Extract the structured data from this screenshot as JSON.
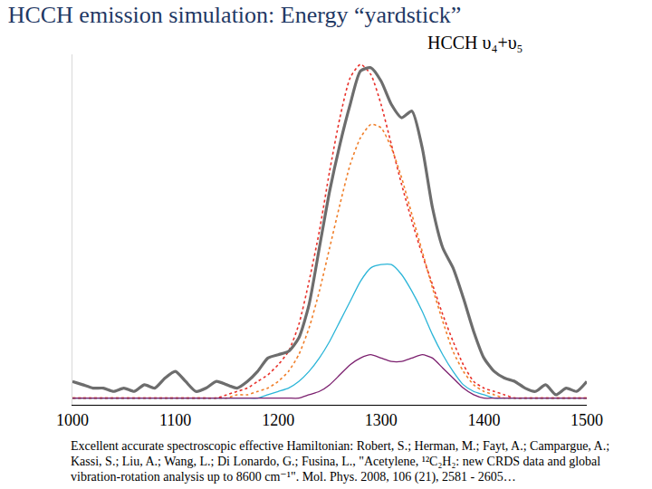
{
  "chart_data": {
    "type": "line",
    "title": "HCCH emission simulation: Energy “yardstick”",
    "annotations": [
      "HCCH υ₄+υ₅"
    ],
    "caption": "Excellent accurate spectroscopic effective Hamiltonian: Robert, S.; Herman, M.; Fayt, A.; Campargue, A.; Kassi, S.; Liu, A.; Wang, L.; Di Lonardo, G.; Fusina, L., \"Acetylene, ¹²C₂H₂: new CRDS data and global vibration-rotation analysis up to 8600 cm⁻¹\". Mol. Phys. 2008, 106 (21), 2581 - 2605…",
    "x": [
      1000,
      1010,
      1020,
      1030,
      1040,
      1050,
      1060,
      1070,
      1080,
      1090,
      1100,
      1110,
      1120,
      1130,
      1140,
      1150,
      1160,
      1170,
      1180,
      1190,
      1200,
      1210,
      1220,
      1230,
      1240,
      1250,
      1260,
      1270,
      1280,
      1290,
      1300,
      1310,
      1320,
      1330,
      1340,
      1350,
      1360,
      1370,
      1380,
      1390,
      1400,
      1410,
      1420,
      1430,
      1440,
      1450,
      1460,
      1470,
      1480,
      1490,
      1500
    ],
    "series": [
      {
        "color": "#e8302a",
        "line_style": "dotted",
        "values": [
          0,
          0,
          0,
          0,
          0,
          0,
          0,
          0,
          0,
          0,
          0,
          0,
          0,
          0,
          0,
          1,
          2,
          3,
          5,
          7,
          10,
          14,
          22,
          35,
          50,
          68,
          84,
          96,
          100,
          97,
          88,
          76,
          64,
          53,
          43,
          34,
          25,
          17,
          10,
          5,
          3,
          2,
          1,
          0,
          0,
          0,
          0,
          0,
          0,
          0,
          0
        ]
      },
      {
        "color": "#f07f2a",
        "line_style": "dotted",
        "values": [
          0,
          0,
          0,
          0,
          0,
          0,
          0,
          0,
          0,
          0,
          0,
          0,
          0,
          0,
          0,
          0,
          1,
          1,
          2,
          3,
          5,
          8,
          13,
          21,
          32,
          45,
          58,
          70,
          78,
          82,
          81,
          75,
          66,
          55,
          44,
          33,
          23,
          14,
          8,
          4,
          2,
          1,
          0,
          0,
          0,
          0,
          0,
          0,
          0,
          0,
          0
        ]
      },
      {
        "color": "#2bb5d8",
        "line_style": "solid",
        "values": [
          0,
          0,
          0,
          0,
          0,
          0,
          0,
          0,
          0,
          0,
          0,
          0,
          0,
          0,
          0,
          0,
          0,
          0,
          0,
          1,
          2,
          3,
          5,
          8,
          12,
          17,
          23,
          29,
          35,
          39,
          40,
          40,
          37,
          32,
          26,
          19,
          13,
          8,
          4,
          2,
          1,
          0,
          0,
          0,
          0,
          0,
          0,
          0,
          0,
          0,
          0
        ]
      },
      {
        "color": "#7b1f6e",
        "line_style": "solid",
        "values": [
          0,
          0,
          0,
          0,
          0,
          0,
          0,
          0,
          0,
          0,
          0,
          0,
          0,
          0,
          0,
          0,
          0,
          0,
          0,
          0,
          0,
          0,
          0,
          1,
          2,
          4,
          7,
          10,
          12,
          13,
          12,
          11,
          11,
          12,
          13,
          12,
          9,
          6,
          3,
          1,
          0,
          0,
          0,
          0,
          0,
          0,
          0,
          0,
          0,
          0,
          0
        ]
      },
      {
        "color": "#6d6d6d",
        "line_style": "thick",
        "values": [
          5,
          4,
          3,
          3,
          2,
          3,
          2,
          4,
          3,
          6,
          8,
          5,
          2,
          3,
          5,
          4,
          3,
          5,
          8,
          12,
          13,
          14,
          18,
          28,
          45,
          62,
          76,
          88,
          98,
          99,
          95,
          88,
          84,
          86,
          75,
          57,
          45,
          39,
          30,
          20,
          12,
          8,
          6,
          5,
          3,
          2,
          4,
          1,
          3,
          2,
          5
        ]
      }
    ],
    "xlim": [
      1000,
      1500
    ],
    "xticks": [
      1000,
      1100,
      1200,
      1300,
      1400,
      1500
    ],
    "ylim": [
      -2,
      103
    ],
    "yticks": [],
    "tick_labels": "x",
    "grid": false
  }
}
